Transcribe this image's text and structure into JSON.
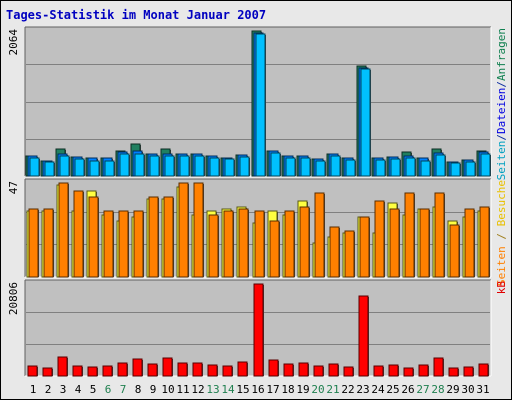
{
  "chart_data": {
    "type": "bar",
    "title": "Tages-Statistik im Monat Januar 2007",
    "days": [
      "1",
      "2",
      "3",
      "4",
      "5",
      "6",
      "7",
      "8",
      "9",
      "10",
      "11",
      "12",
      "13",
      "14",
      "15",
      "16",
      "17",
      "18",
      "19",
      "20",
      "21",
      "22",
      "23",
      "24",
      "25",
      "26",
      "27",
      "28",
      "29",
      "30",
      "31"
    ],
    "weekend_days": [
      "6",
      "7",
      "13",
      "14",
      "20",
      "21",
      "27",
      "28"
    ],
    "panels": [
      {
        "id": "requests",
        "max_label": "2064",
        "ylim": [
          0,
          2064
        ],
        "side_label_parts": [
          {
            "text": "Seiten",
            "color": "#00a0c0"
          },
          {
            "text": "/",
            "color": "#1030a0"
          },
          {
            "text": "Dateien",
            "color": "#0000e0"
          },
          {
            "text": "/",
            "color": "#1030a0"
          },
          {
            "text": "Anfragen",
            "color": "#108050"
          }
        ],
        "series": [
          {
            "name": "Anfragen",
            "color": "#208060",
            "values": [
              280,
              220,
              380,
              270,
              250,
              260,
              360,
              460,
              320,
              390,
              310,
              320,
              290,
              260,
              300,
              2060,
              360,
              290,
              280,
              240,
              310,
              260,
              1560,
              260,
              270,
              340,
              250,
              380,
              200,
              230,
              350
            ]
          },
          {
            "name": "Dateien",
            "color": "#0080ff",
            "values": [
              280,
              220,
              320,
              270,
              250,
              250,
              340,
              350,
              320,
              310,
              310,
              320,
              290,
              260,
              300,
              2040,
              360,
              290,
              280,
              240,
              310,
              260,
              1540,
              260,
              270,
              290,
              250,
              330,
              200,
              230,
              340
            ]
          },
          {
            "name": "Seiten",
            "color": "#00c0ff",
            "values": [
              250,
              200,
              280,
              240,
              220,
              220,
              310,
              320,
              290,
              280,
              280,
              290,
              260,
              240,
              270,
              2020,
              330,
              260,
              260,
              210,
              280,
              230,
              1520,
              230,
              240,
              260,
              220,
              300,
              180,
              200,
              310
            ]
          }
        ]
      },
      {
        "id": "visits",
        "max_label": "47",
        "ylim": [
          0,
          47
        ],
        "side_label_parts": [
          {
            "text": "Seiten",
            "color": "#ff8000"
          },
          {
            "text": " / ",
            "color": "#a08020"
          },
          {
            "text": "Besuche",
            "color": "#e8c000"
          }
        ],
        "series": [
          {
            "name": "Besuche",
            "color": "#ffff40",
            "values": [
              33,
              33,
              46,
              33,
              43,
              31,
              28,
              30,
              39,
              39,
              45,
              31,
              33,
              34,
              35,
              27,
              33,
              31,
              38,
              17,
              20,
              22,
              30,
              22,
              37,
              31,
              34,
              35,
              28,
              30,
              33
            ]
          },
          {
            "name": "Seiten",
            "color": "#ff8000",
            "values": [
              34,
              34,
              47,
              43,
              40,
              33,
              33,
              33,
              40,
              40,
              47,
              47,
              31,
              33,
              34,
              33,
              28,
              33,
              35,
              42,
              25,
              23,
              30,
              38,
              34,
              42,
              34,
              42,
              26,
              34,
              35
            ]
          }
        ]
      },
      {
        "id": "kb",
        "max_label": "20806",
        "ylim": [
          0,
          20806
        ],
        "side_label_parts": [
          {
            "text": "kB",
            "color": "#e00000"
          }
        ],
        "series": [
          {
            "name": "kB",
            "color": "#ff0000",
            "values": [
              2300,
              1700,
              4200,
              2300,
              2000,
              2200,
              3000,
              3800,
              2800,
              4000,
              2900,
              2900,
              2600,
              2300,
              3100,
              20800,
              3700,
              2800,
              3000,
              2200,
              2800,
              2000,
              18000,
              2200,
              2400,
              1700,
              2600,
              4100,
              1700,
              2000,
              2800
            ]
          }
        ]
      }
    ]
  }
}
